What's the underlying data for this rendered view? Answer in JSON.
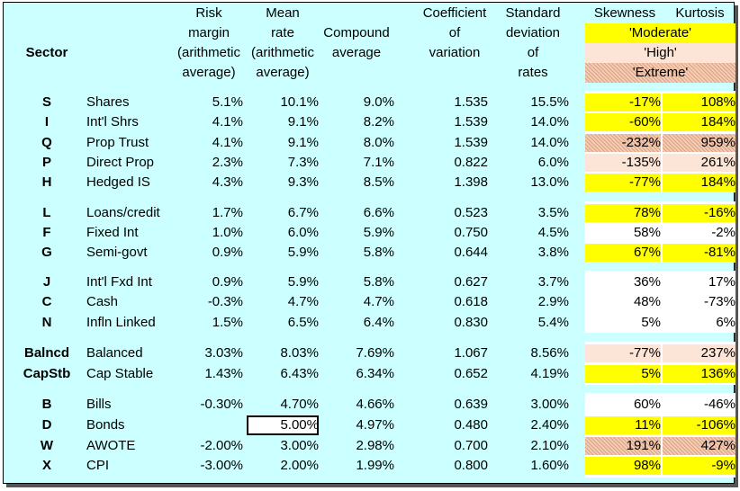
{
  "headers": {
    "sector": "Sector",
    "risk_margin": [
      "Risk",
      "margin",
      "(arithmetic",
      "average)"
    ],
    "mean_rate": [
      "Mean",
      "rate",
      "(arithmetic",
      "average)"
    ],
    "compound": [
      "Compound",
      "average"
    ],
    "coefficient": [
      "Coefficient",
      "of",
      "variation"
    ],
    "std_dev": [
      "Standard",
      "deviation",
      "of",
      "rates"
    ],
    "skewness": "Skewness",
    "kurtosis": "Kurtosis"
  },
  "legend": {
    "moderate": "'Moderate'",
    "high": "'High'",
    "extreme": "'Extreme'"
  },
  "colors": {
    "background": "#ccffff",
    "moderate": "#ffff00",
    "high": "#fce4d6",
    "extreme": "#f8cbad"
  },
  "rows": [
    {
      "code": "S",
      "name": "Shares",
      "risk": "5.1%",
      "mean": "10.1%",
      "compound": "9.0%",
      "cov": "1.535",
      "sd": "15.5%",
      "skew": "-17%",
      "kurt": "108%",
      "skew_level": "moderate",
      "kurt_level": "moderate"
    },
    {
      "code": "I",
      "name": "Int'l Shrs",
      "risk": "4.1%",
      "mean": "9.1%",
      "compound": "8.2%",
      "cov": "1.539",
      "sd": "14.0%",
      "skew": "-60%",
      "kurt": "184%",
      "skew_level": "moderate",
      "kurt_level": "moderate"
    },
    {
      "code": "Q",
      "name": "Prop Trust",
      "risk": "4.1%",
      "mean": "9.1%",
      "compound": "8.0%",
      "cov": "1.539",
      "sd": "14.0%",
      "skew": "-232%",
      "kurt": "959%",
      "skew_level": "extreme",
      "kurt_level": "extreme"
    },
    {
      "code": "P",
      "name": "Direct Prop",
      "risk": "2.3%",
      "mean": "7.3%",
      "compound": "7.1%",
      "cov": "0.822",
      "sd": "6.0%",
      "skew": "-135%",
      "kurt": "261%",
      "skew_level": "high",
      "kurt_level": "high"
    },
    {
      "code": "H",
      "name": "Hedged IS",
      "risk": "4.3%",
      "mean": "9.3%",
      "compound": "8.5%",
      "cov": "1.398",
      "sd": "13.0%",
      "skew": "-77%",
      "kurt": "184%",
      "skew_level": "moderate",
      "kurt_level": "moderate"
    },
    {
      "code": "L",
      "name": "Loans/credit",
      "risk": "1.7%",
      "mean": "6.7%",
      "compound": "6.6%",
      "cov": "0.523",
      "sd": "3.5%",
      "skew": "78%",
      "kurt": "-16%",
      "skew_level": "moderate",
      "kurt_level": "moderate"
    },
    {
      "code": "F",
      "name": "Fixed Int",
      "risk": "1.0%",
      "mean": "6.0%",
      "compound": "5.9%",
      "cov": "0.750",
      "sd": "4.5%",
      "skew": "58%",
      "kurt": "-2%",
      "skew_level": "none",
      "kurt_level": "none"
    },
    {
      "code": "G",
      "name": "Semi-govt",
      "risk": "0.9%",
      "mean": "5.9%",
      "compound": "5.8%",
      "cov": "0.644",
      "sd": "3.8%",
      "skew": "67%",
      "kurt": "-81%",
      "skew_level": "moderate",
      "kurt_level": "moderate"
    },
    {
      "code": "J",
      "name": "Int'l Fxd Int",
      "risk": "0.9%",
      "mean": "5.9%",
      "compound": "5.8%",
      "cov": "0.627",
      "sd": "3.7%",
      "skew": "36%",
      "kurt": "17%",
      "skew_level": "none",
      "kurt_level": "none"
    },
    {
      "code": "C",
      "name": "Cash",
      "risk": "-0.3%",
      "mean": "4.7%",
      "compound": "4.7%",
      "cov": "0.618",
      "sd": "2.9%",
      "skew": "48%",
      "kurt": "-73%",
      "skew_level": "none",
      "kurt_level": "none"
    },
    {
      "code": "N",
      "name": "Infln Linked",
      "risk": "1.5%",
      "mean": "6.5%",
      "compound": "6.4%",
      "cov": "0.830",
      "sd": "5.4%",
      "skew": "5%",
      "kurt": "6%",
      "skew_level": "none",
      "kurt_level": "none"
    },
    {
      "code": "Balncd",
      "name": "Balanced",
      "risk": "3.03%",
      "mean": "8.03%",
      "compound": "7.69%",
      "cov": "1.067",
      "sd": "8.56%",
      "skew": "-77%",
      "kurt": "237%",
      "skew_level": "high",
      "kurt_level": "high"
    },
    {
      "code": "CapStb",
      "name": "Cap Stable",
      "risk": "1.43%",
      "mean": "6.43%",
      "compound": "6.34%",
      "cov": "0.652",
      "sd": "4.19%",
      "skew": "5%",
      "kurt": "136%",
      "skew_level": "moderate",
      "kurt_level": "moderate"
    },
    {
      "code": "B",
      "name": "Bills",
      "risk": "-0.30%",
      "mean": "4.70%",
      "compound": "4.66%",
      "cov": "0.639",
      "sd": "3.00%",
      "skew": "60%",
      "kurt": "-46%",
      "skew_level": "none",
      "kurt_level": "none"
    },
    {
      "code": "D",
      "name": "Bonds",
      "risk": "",
      "mean": "5.00%",
      "compound": "4.97%",
      "cov": "0.480",
      "sd": "2.40%",
      "skew": "11%",
      "kurt": "-106%",
      "skew_level": "moderate",
      "kurt_level": "moderate",
      "mean_boxed": true
    },
    {
      "code": "W",
      "name": "AWOTE",
      "risk": "-2.00%",
      "mean": "3.00%",
      "compound": "2.98%",
      "cov": "0.700",
      "sd": "2.10%",
      "skew": "191%",
      "kurt": "427%",
      "skew_level": "extreme",
      "kurt_level": "extreme"
    },
    {
      "code": "X",
      "name": "CPI",
      "risk": "-3.00%",
      "mean": "2.00%",
      "compound": "1.99%",
      "cov": "0.800",
      "sd": "1.60%",
      "skew": "98%",
      "kurt": "-9%",
      "skew_level": "moderate",
      "kurt_level": "moderate"
    }
  ]
}
